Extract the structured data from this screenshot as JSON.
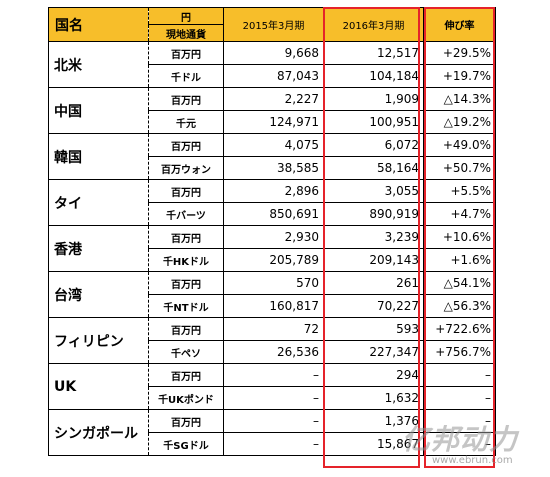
{
  "header": {
    "country": "国名",
    "unit_top": "円",
    "unit_bottom": "現地通貨",
    "year2015": "2015年3月期",
    "year2016": "2016年3月期",
    "rate": "伸び率"
  },
  "rows": [
    {
      "country": "北米",
      "lines": [
        {
          "unit": "百万円",
          "v2015": "9,668",
          "v2016": "12,517",
          "rate": "+29.5%"
        },
        {
          "unit": "千ドル",
          "v2015": "87,043",
          "v2016": "104,184",
          "rate": "+19.7%"
        }
      ]
    },
    {
      "country": "中国",
      "lines": [
        {
          "unit": "百万円",
          "v2015": "2,227",
          "v2016": "1,909",
          "rate": "△14.3%"
        },
        {
          "unit": "千元",
          "v2015": "124,971",
          "v2016": "100,951",
          "rate": "△19.2%"
        }
      ]
    },
    {
      "country": "韓国",
      "lines": [
        {
          "unit": "百万円",
          "v2015": "4,075",
          "v2016": "6,072",
          "rate": "+49.0%"
        },
        {
          "unit": "百万ウォン",
          "v2015": "38,585",
          "v2016": "58,164",
          "rate": "+50.7%"
        }
      ]
    },
    {
      "country": "タイ",
      "lines": [
        {
          "unit": "百万円",
          "v2015": "2,896",
          "v2016": "3,055",
          "rate": "+5.5%"
        },
        {
          "unit": "千バーツ",
          "v2015": "850,691",
          "v2016": "890,919",
          "rate": "+4.7%"
        }
      ]
    },
    {
      "country": "香港",
      "lines": [
        {
          "unit": "百万円",
          "v2015": "2,930",
          "v2016": "3,239",
          "rate": "+10.6%"
        },
        {
          "unit": "千HKドル",
          "v2015": "205,789",
          "v2016": "209,143",
          "rate": "+1.6%"
        }
      ]
    },
    {
      "country": "台湾",
      "lines": [
        {
          "unit": "百万円",
          "v2015": "570",
          "v2016": "261",
          "rate": "△54.1%"
        },
        {
          "unit": "千NTドル",
          "v2015": "160,817",
          "v2016": "70,227",
          "rate": "△56.3%"
        }
      ]
    },
    {
      "country": "フィリピン",
      "lines": [
        {
          "unit": "百万円",
          "v2015": "72",
          "v2016": "593",
          "rate": "+722.6%"
        },
        {
          "unit": "千ペソ",
          "v2015": "26,536",
          "v2016": "227,347",
          "rate": "+756.7%"
        }
      ]
    },
    {
      "country": "UK",
      "lines": [
        {
          "unit": "百万円",
          "v2015": "–",
          "v2016": "294",
          "rate": "–"
        },
        {
          "unit": "千UKポンド",
          "v2015": "–",
          "v2016": "1,632",
          "rate": "–"
        }
      ]
    },
    {
      "country": "シンガポール",
      "lines": [
        {
          "unit": "百万円",
          "v2015": "–",
          "v2016": "1,376",
          "rate": "–"
        },
        {
          "unit": "千SGドル",
          "v2015": "–",
          "v2016": "15,867",
          "rate": "–"
        }
      ]
    }
  ],
  "highlight_color": "#e5232a",
  "header_color": "#f7be2a",
  "watermark": {
    "logo": "亿邦动力",
    "url": "www.ebrun.com"
  }
}
